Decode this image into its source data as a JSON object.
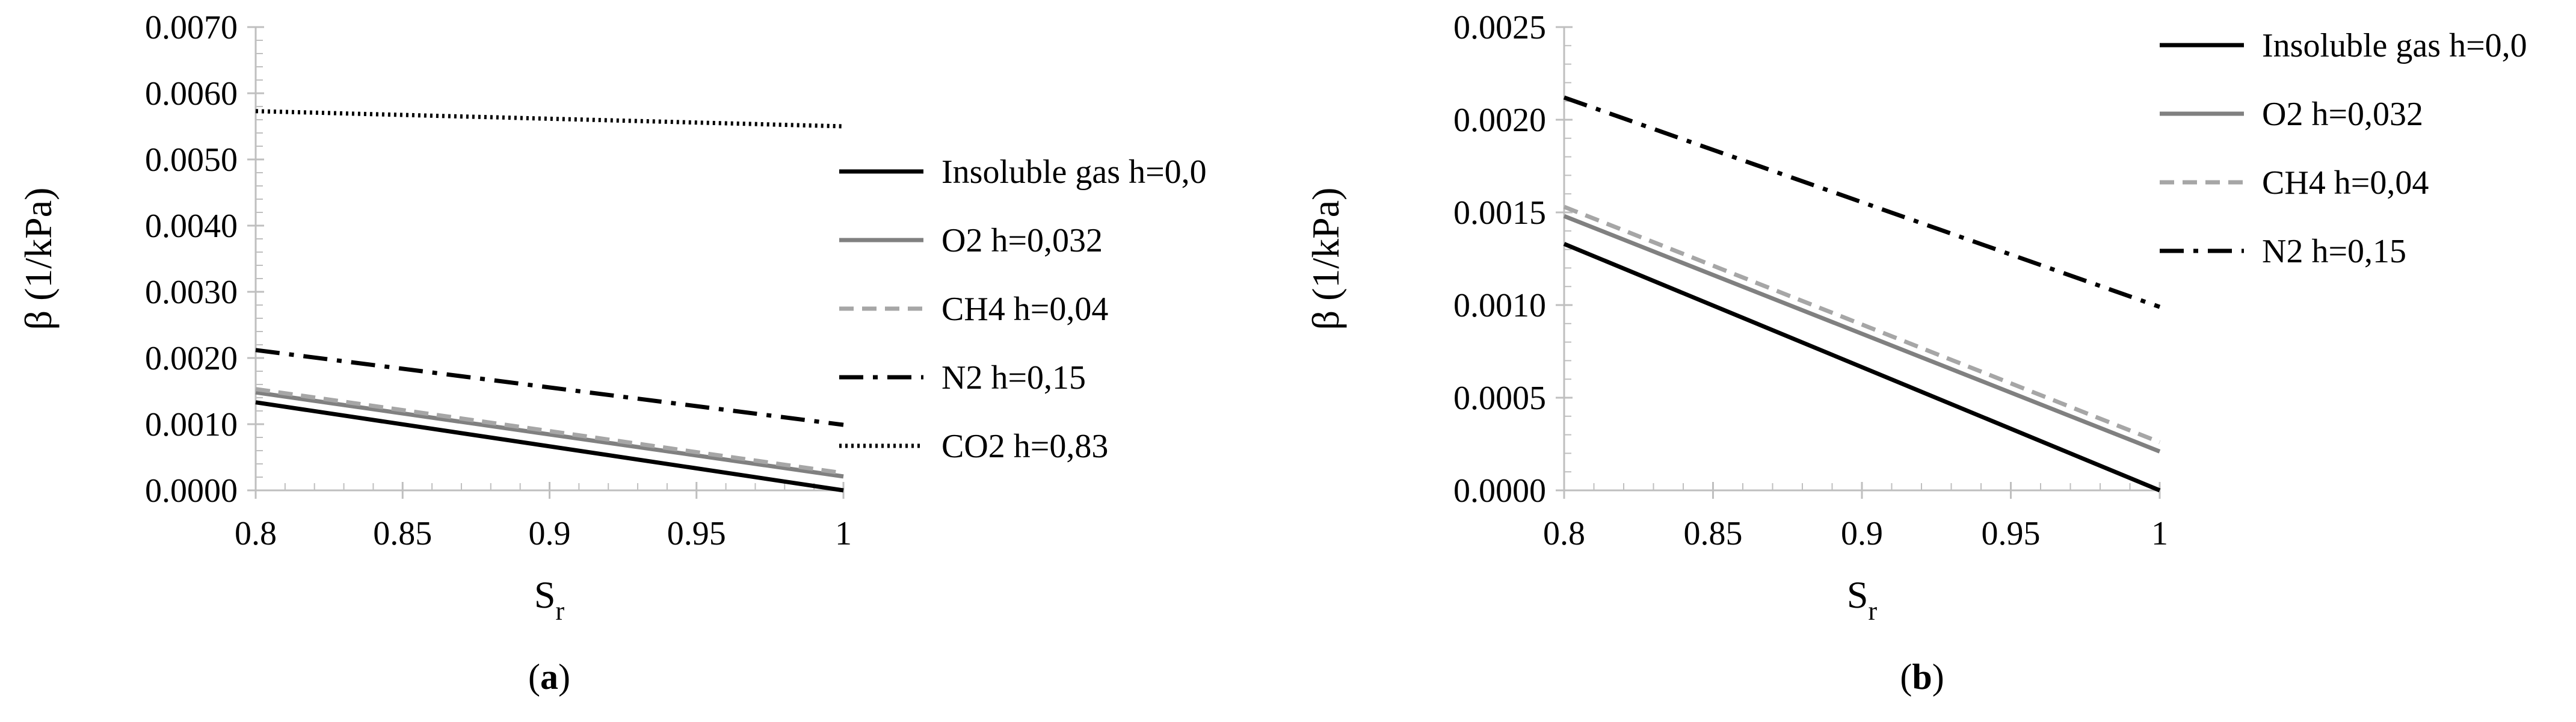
{
  "chart_data": [
    {
      "type": "line",
      "panel_label": {
        "open": "(",
        "letter": "a",
        "close": ")"
      },
      "xlabel": "S",
      "xlabel_sub": "r",
      "ylabel": "β (1/kPa)",
      "xlim": [
        0.8,
        1.0
      ],
      "ylim": [
        0.0,
        0.007
      ],
      "xticks": [
        "0.8",
        "0.85",
        "0.9",
        "0.95",
        "1"
      ],
      "yticks": [
        "0.0000",
        "0.0010",
        "0.0020",
        "0.0030",
        "0.0040",
        "0.0050",
        "0.0060",
        "0.0070"
      ],
      "grid": false,
      "legend_position": "right",
      "series": [
        {
          "name": "Insoluble gas h=0,0",
          "color": "#000000",
          "dash": "solid",
          "x": [
            0.8,
            1.0
          ],
          "y": [
            0.00133,
            0.0
          ]
        },
        {
          "name": "O2 h=0,032",
          "color": "#808080",
          "dash": "solid",
          "x": [
            0.8,
            1.0
          ],
          "y": [
            0.00148,
            0.00021
          ]
        },
        {
          "name": "CH4 h=0,04",
          "color": "#a6a6a6",
          "dash": "dash",
          "x": [
            0.8,
            1.0
          ],
          "y": [
            0.00153,
            0.00026
          ]
        },
        {
          "name": "N2 h=0,15",
          "color": "#000000",
          "dash": "dashdot",
          "x": [
            0.8,
            1.0
          ],
          "y": [
            0.00212,
            0.00099
          ]
        },
        {
          "name": "CO2 h=0,83",
          "color": "#000000",
          "dash": "dot",
          "x": [
            0.8,
            1.0
          ],
          "y": [
            0.00573,
            0.0055
          ]
        }
      ]
    },
    {
      "type": "line",
      "panel_label": {
        "open": "(",
        "letter": "b",
        "close": ")"
      },
      "xlabel": "S",
      "xlabel_sub": "r",
      "ylabel": "β (1/kPa)",
      "xlim": [
        0.8,
        1.0
      ],
      "ylim": [
        0.0,
        0.0025
      ],
      "xticks": [
        "0.8",
        "0.85",
        "0.9",
        "0.95",
        "1"
      ],
      "yticks": [
        "0.0000",
        "0.0005",
        "0.0010",
        "0.0015",
        "0.0020",
        "0.0025"
      ],
      "grid": false,
      "legend_position": "top-right",
      "series": [
        {
          "name": "Insoluble gas h=0,0",
          "color": "#000000",
          "dash": "solid",
          "x": [
            0.8,
            1.0
          ],
          "y": [
            0.00133,
            0.0
          ]
        },
        {
          "name": "O2 h=0,032",
          "color": "#808080",
          "dash": "solid",
          "x": [
            0.8,
            1.0
          ],
          "y": [
            0.00148,
            0.00021
          ]
        },
        {
          "name": "CH4 h=0,04",
          "color": "#a6a6a6",
          "dash": "dash",
          "x": [
            0.8,
            1.0
          ],
          "y": [
            0.00153,
            0.00026
          ]
        },
        {
          "name": "N2 h=0,15",
          "color": "#000000",
          "dash": "dashdot",
          "x": [
            0.8,
            1.0
          ],
          "y": [
            0.00212,
            0.00099
          ]
        }
      ]
    }
  ]
}
